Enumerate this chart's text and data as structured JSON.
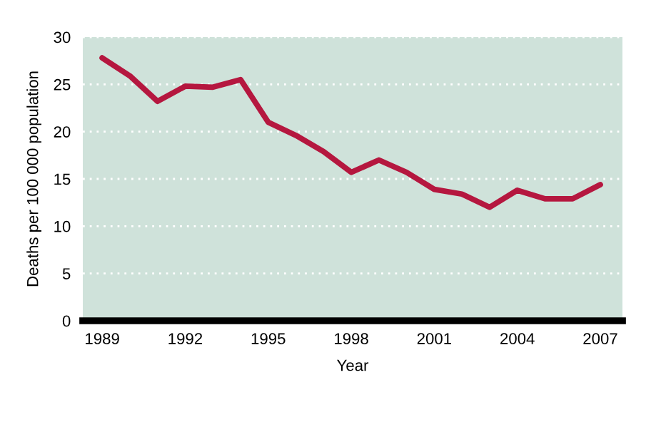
{
  "chart_data": {
    "type": "line",
    "xlabel": "Year",
    "ylabel": "Deaths per 100 000 population",
    "x": [
      1989,
      1990,
      1991,
      1992,
      1993,
      1994,
      1995,
      1996,
      1997,
      1998,
      1999,
      2000,
      2001,
      2002,
      2003,
      2004,
      2005,
      2006,
      2007
    ],
    "series": [
      {
        "color": "#b5173f",
        "values": [
          27.8,
          25.9,
          23.2,
          24.8,
          24.7,
          25.5,
          21.0,
          19.6,
          17.9,
          15.7,
          17.0,
          15.7,
          13.9,
          13.4,
          12.0,
          13.8,
          12.9,
          12.9,
          14.4
        ]
      }
    ],
    "xlim": [
      1988.3,
      2007.8
    ],
    "xticks": [
      1989,
      1992,
      1995,
      1998,
      2001,
      2004,
      2007
    ],
    "ylim": [
      0,
      30
    ],
    "yticks": [
      0,
      5,
      10,
      15,
      20,
      25,
      30
    ],
    "grid": "y",
    "marker": "none",
    "line_style": "solid"
  }
}
